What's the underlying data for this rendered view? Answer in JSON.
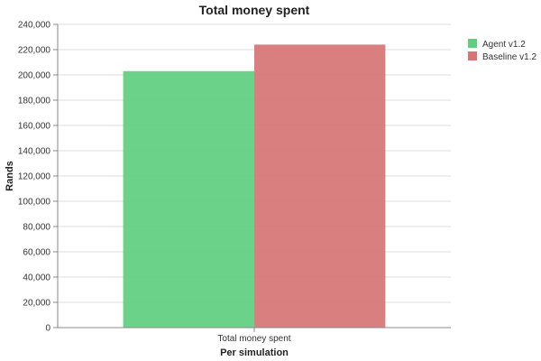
{
  "chart_data": {
    "type": "bar",
    "title": "Total money spent",
    "xlabel": "Per simulation",
    "ylabel": "Rands",
    "categories": [
      "Total money spent"
    ],
    "series": [
      {
        "name": "Agent v1.2",
        "values": [
          203000
        ],
        "color": "#5dcf7f"
      },
      {
        "name": "Baseline v1.2",
        "values": [
          224000
        ],
        "color": "#d77474"
      }
    ],
    "ylim": [
      0,
      240000
    ],
    "yticks": [
      0,
      20000,
      40000,
      60000,
      80000,
      100000,
      120000,
      140000,
      160000,
      180000,
      200000,
      220000,
      240000
    ],
    "ytick_labels": [
      "0",
      "20,000",
      "40,000",
      "60,000",
      "80,000",
      "100,000",
      "120,000",
      "140,000",
      "160,000",
      "180,000",
      "200,000",
      "220,000",
      "240,000"
    ],
    "grid": true,
    "legend_position": "top-right"
  }
}
